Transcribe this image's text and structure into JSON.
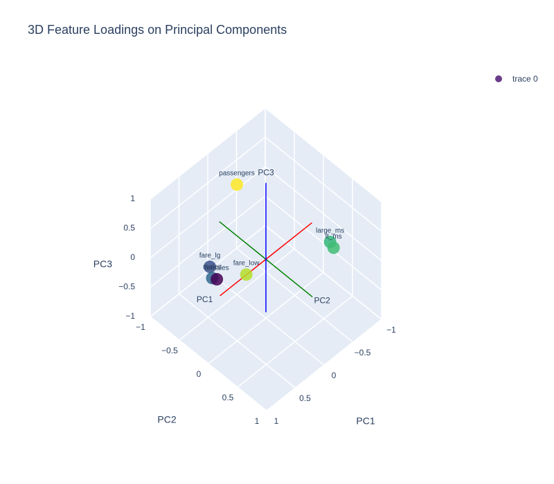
{
  "chart_data": {
    "type": "scatter3d",
    "title": "3D Feature Loadings on Principal Components",
    "series": [
      {
        "name": "trace 0",
        "legend_color": "#6a3d8a",
        "labels": [
          "passengers",
          "large_ms",
          "lt_ms",
          "fare_lg",
          "fare_low",
          "males",
          "females"
        ],
        "x": [
          0.05,
          -0.56,
          -0.56,
          0.51,
          0.21,
          0.58,
          0.52
        ],
        "y": [
          -0.45,
          0.55,
          0.61,
          -0.46,
          -0.13,
          -0.35,
          -0.33
        ],
        "z": [
          0.95,
          0.3,
          0.25,
          -0.1,
          -0.2,
          -0.15,
          -0.2
        ],
        "colors": [
          "#fde725",
          "#35b779",
          "#3fbc73",
          "#3b528b",
          "#b5de2b",
          "#31688e",
          "#440154"
        ]
      }
    ],
    "axis_lines": [
      {
        "name": "PC1",
        "color": "red",
        "from": [
          -0.8,
          0,
          0
        ],
        "to": [
          0.8,
          0,
          0
        ]
      },
      {
        "name": "PC2",
        "color": "green",
        "from": [
          0,
          -0.8,
          0
        ],
        "to": [
          0,
          0.8,
          0
        ]
      },
      {
        "name": "PC3",
        "color": "blue",
        "from": [
          0,
          0,
          -0.9
        ],
        "to": [
          0,
          0,
          1.3
        ]
      }
    ],
    "xaxis_title": "PC1",
    "yaxis_title": "PC2",
    "zaxis_title": "PC3",
    "xlim": [
      -1,
      1
    ],
    "ylim": [
      -1,
      1
    ],
    "zlim": [
      -1,
      1
    ],
    "xticks": [
      {
        "value": -1,
        "label": "−1"
      },
      {
        "value": -0.5,
        "label": "−0.5"
      },
      0,
      0.5,
      1
    ],
    "yticks": [
      {
        "value": -1,
        "label": "−1"
      },
      {
        "value": -0.5,
        "label": "−0.5"
      },
      0,
      0.5,
      1
    ],
    "zticks": [
      {
        "value": -1,
        "label": "−1"
      },
      {
        "value": -0.5,
        "label": "−0.5"
      },
      0,
      0.5,
      1
    ]
  }
}
